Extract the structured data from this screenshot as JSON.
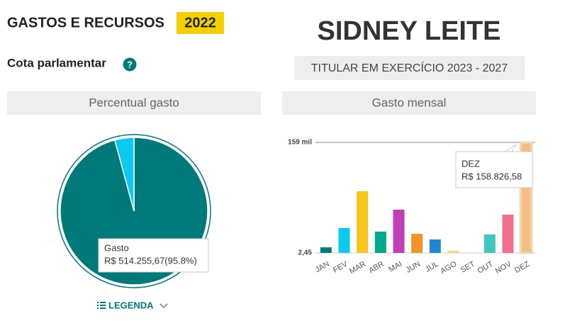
{
  "header": {
    "title": "GASTOS E RECURSOS",
    "year": "2022",
    "section": "Cota parlamentar",
    "help": "?"
  },
  "profile": {
    "name": "SIDNEY LEITE",
    "status": "TITULAR EM EXERCÍCIO 2023 - 2027"
  },
  "legend_button": "LEGENDA",
  "chart_data": [
    {
      "type": "pie",
      "title": "Percentual gasto",
      "categories": [
        "Gasto",
        null
      ],
      "values": [
        95.8,
        4.2
      ],
      "value_labels": [
        "R$ 514.255,67(95.8%)",
        null
      ],
      "colors": [
        "#00797a",
        "#0cc9f0"
      ]
    },
    {
      "type": "bar",
      "title": "Gasto mensal",
      "categories": [
        "JAN",
        "FEV",
        "MAR",
        "ABR",
        "MAI",
        "JUN",
        "JUL",
        "AGO",
        "SET",
        "OUT",
        "NOV",
        "DEZ"
      ],
      "values": [
        8000,
        35700,
        88700,
        30600,
        62200,
        27500,
        19400,
        3000,
        2.45,
        26500,
        55000,
        158826.58
      ],
      "value_labels": [
        null,
        null,
        null,
        null,
        null,
        null,
        null,
        null,
        null,
        null,
        null,
        "R$ 158.826,58"
      ],
      "colors": [
        "#00797a",
        "#0cc9f0",
        "#f6c619",
        "#00a989",
        "#c13fb7",
        "#f1922b",
        "#1f88d1",
        "#f5d972",
        "#cccccc",
        "#3fc6c1",
        "#f26f8d",
        "#f6be83"
      ],
      "ylim": [
        2.45,
        159000
      ],
      "yticks": [
        {
          "value": 2.45,
          "label": "2,45"
        },
        {
          "value": 159000,
          "label": "159 mil"
        }
      ]
    }
  ]
}
